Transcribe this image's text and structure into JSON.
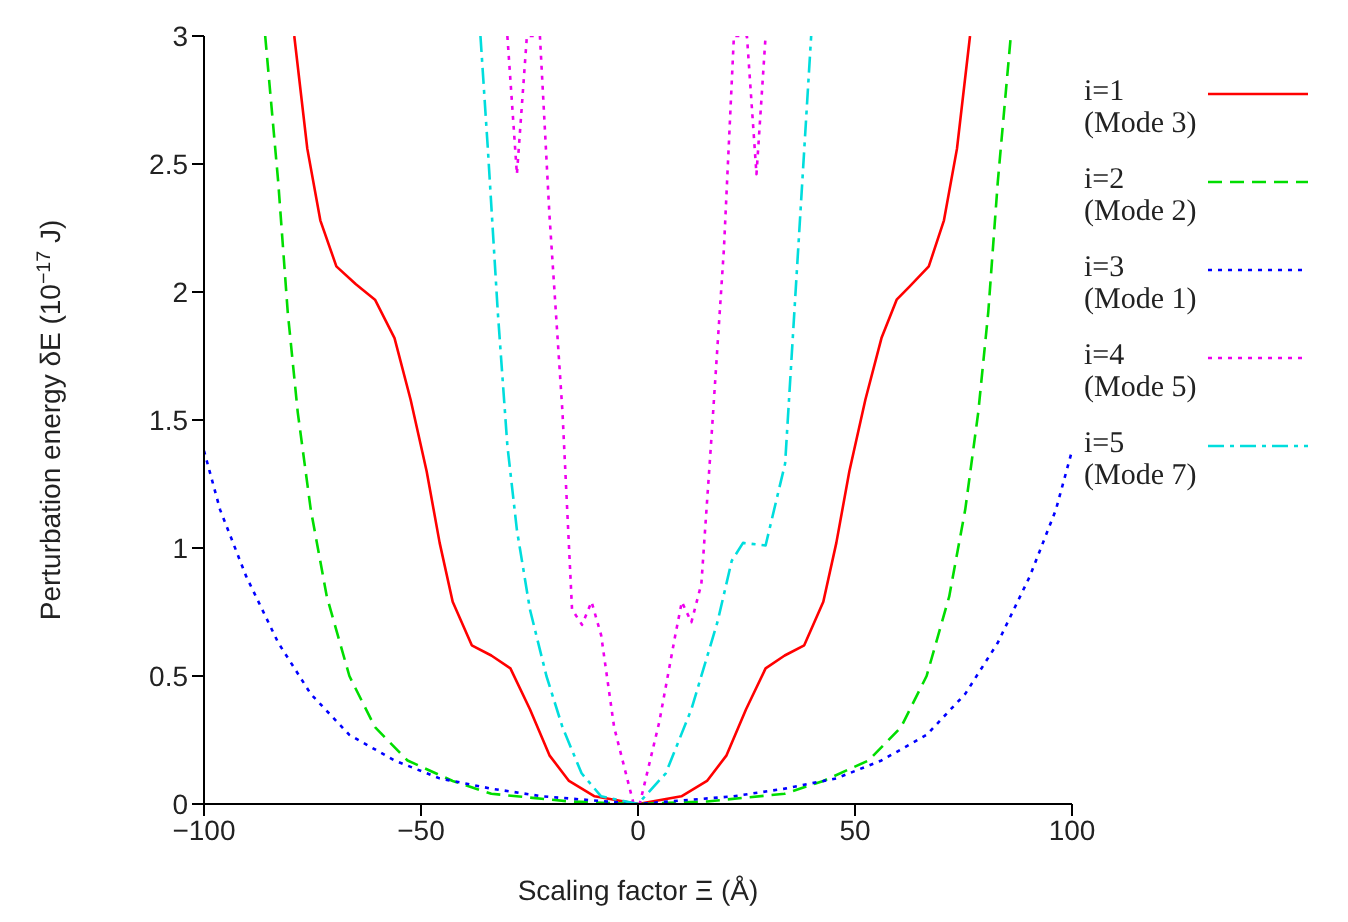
{
  "chart_data": {
    "type": "line",
    "xlabel": "Scaling factor Ξ (Å)",
    "ylabel": "Perturbation energy δE (10$^{−17}$ J)",
    "xlim": [
      -100,
      100
    ],
    "xticks": [
      {
        "value": -100,
        "label": "−100"
      },
      {
        "value": -50,
        "label": "−50"
      },
      0,
      50,
      100
    ],
    "ylim": [
      0,
      3
    ],
    "yticks": [
      0,
      0.5,
      1,
      1.5,
      2,
      2.5,
      3
    ],
    "grid": false,
    "legend": "right",
    "marker": "none",
    "series": [
      {
        "name": "i=1 (Mode 3)",
        "color": "#ff0000",
        "line_style": "solid",
        "x": [
          -79.2,
          -76.2,
          -73.2,
          -69.5,
          -65,
          -60.6,
          -56.1,
          -52.4,
          -48.7,
          -45.7,
          -42.7,
          -38.3,
          -33.8,
          -29.4,
          -24.9,
          -20.4,
          -15.9,
          -10,
          0,
          10,
          15.9,
          20.4,
          24.9,
          29.4,
          33.8,
          38.3,
          42.7,
          45.7,
          48.7,
          52.4,
          56.1,
          59.6,
          62.5,
          67,
          70.5,
          73.5,
          76.5
        ],
        "values": [
          3,
          2.56,
          2.28,
          2.1,
          2.03,
          1.97,
          1.82,
          1.58,
          1.3,
          1.02,
          0.79,
          0.62,
          0.58,
          0.53,
          0.37,
          0.19,
          0.09,
          0.03,
          0,
          0.03,
          0.09,
          0.19,
          0.37,
          0.53,
          0.58,
          0.62,
          0.79,
          1.02,
          1.3,
          1.58,
          1.82,
          1.97,
          2.02,
          2.1,
          2.28,
          2.56,
          3
        ]
      },
      {
        "name": "i=2 (Mode 2)",
        "color": "#00dd00",
        "line_style": "dashed",
        "x": [
          -85.9,
          -82.9,
          -80.7,
          -78.4,
          -75.4,
          -71.7,
          -66.5,
          -60.6,
          -53.1,
          -42.7,
          -33.8,
          -15.9,
          0,
          15.9,
          33.8,
          42.7,
          53.1,
          60.6,
          66.5,
          71.7,
          75.4,
          78.4,
          80.7,
          82.9,
          85.9
        ],
        "values": [
          3,
          2.43,
          1.92,
          1.53,
          1.15,
          0.81,
          0.5,
          0.3,
          0.17,
          0.09,
          0.04,
          0.01,
          0,
          0.01,
          0.04,
          0.09,
          0.17,
          0.3,
          0.5,
          0.81,
          1.15,
          1.53,
          1.92,
          2.43,
          3
        ]
      },
      {
        "name": "i=3 (Mode 1)",
        "color": "#0000ff",
        "line_style": "dotted",
        "x": [
          -100,
          -96.3,
          -90.3,
          -82.9,
          -75.4,
          -66.5,
          -56.1,
          -45.7,
          -33.8,
          -22,
          0,
          22,
          33.8,
          45.7,
          56.1,
          66.5,
          75.4,
          82.9,
          90.3,
          96.3,
          100
        ],
        "values": [
          1.38,
          1.15,
          0.89,
          0.63,
          0.43,
          0.27,
          0.17,
          0.1,
          0.06,
          0.03,
          0,
          0.03,
          0.06,
          0.1,
          0.17,
          0.27,
          0.43,
          0.63,
          0.89,
          1.15,
          1.38
        ]
      },
      {
        "name": "i=4 (Mode 5)",
        "color": "#ee00ee",
        "line_style": "dotted",
        "x": [
          -30.1,
          -27.9,
          -25.6,
          -22.6,
          -20.4,
          -17.4,
          -15.2,
          -12.9,
          -10.7,
          -8.5,
          -5.5,
          -1,
          0.4,
          4.9,
          8.6,
          10.1,
          12.3,
          14.6,
          16.8,
          19.8,
          22.1,
          25.1,
          27.3,
          29.4
        ],
        "values": [
          3,
          2.46,
          3,
          3,
          2.3,
          1.53,
          0.76,
          0.7,
          0.79,
          0.66,
          0.3,
          0,
          0,
          0.32,
          0.66,
          0.79,
          0.71,
          0.86,
          1.4,
          2.17,
          3,
          3,
          2.46,
          3
        ]
      },
      {
        "name": "i=5 (Mode 7)",
        "color": "#00dddd",
        "line_style": "dashdot",
        "x": [
          -36.3,
          -34.6,
          -32.3,
          -30.1,
          -27.9,
          -24.9,
          -21.1,
          -17.4,
          -13,
          -8.5,
          0,
          6.4,
          12.3,
          18.3,
          21.6,
          24.2,
          29.4,
          33.9,
          39.9
        ],
        "values": [
          3,
          2.56,
          1.92,
          1.4,
          1.07,
          0.76,
          0.5,
          0.3,
          0.12,
          0.03,
          0,
          0.12,
          0.37,
          0.71,
          0.95,
          1.02,
          1.01,
          1.33,
          3
        ]
      }
    ]
  }
}
